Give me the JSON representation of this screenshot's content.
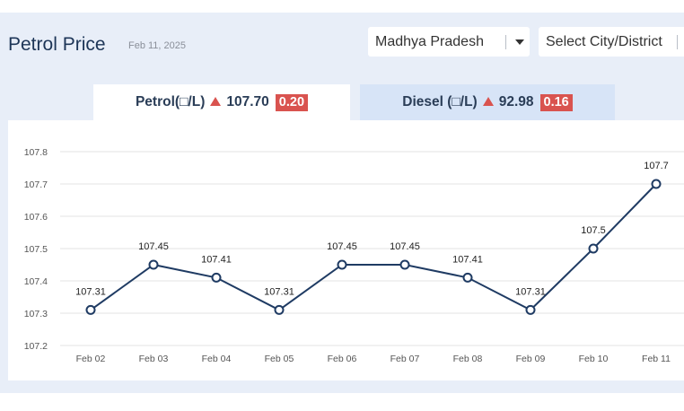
{
  "header": {
    "title": "Petrol Price",
    "date": "Feb 11, 2025",
    "state_select": "Madhya Pradesh",
    "city_select": "Select City/District"
  },
  "tabs": {
    "petrol": {
      "label": "Petrol(□/L)",
      "price": "107.70",
      "change": "0.20"
    },
    "diesel": {
      "label": "Diesel (□/L)",
      "price": "92.98",
      "change": "0.16"
    }
  },
  "colors": {
    "line": "#1f3b63",
    "badge": "#d9534f",
    "title": "#1d3557"
  },
  "chart_data": {
    "type": "line",
    "categories": [
      "Feb 02",
      "Feb 03",
      "Feb 04",
      "Feb 05",
      "Feb 06",
      "Feb 07",
      "Feb 08",
      "Feb 09",
      "Feb 10",
      "Feb 11"
    ],
    "values": [
      107.31,
      107.45,
      107.41,
      107.31,
      107.45,
      107.45,
      107.41,
      107.31,
      107.5,
      107.7
    ],
    "data_labels": [
      "107.31",
      "107.45",
      "107.41",
      "107.31",
      "107.45",
      "107.45",
      "107.41",
      "107.31",
      "107.5",
      "107.7"
    ],
    "yticks": [
      "107.2",
      "107.3",
      "107.4",
      "107.5",
      "107.6",
      "107.7",
      "107.8"
    ],
    "ylim": [
      107.2,
      107.8
    ],
    "grid": "horizontal"
  }
}
